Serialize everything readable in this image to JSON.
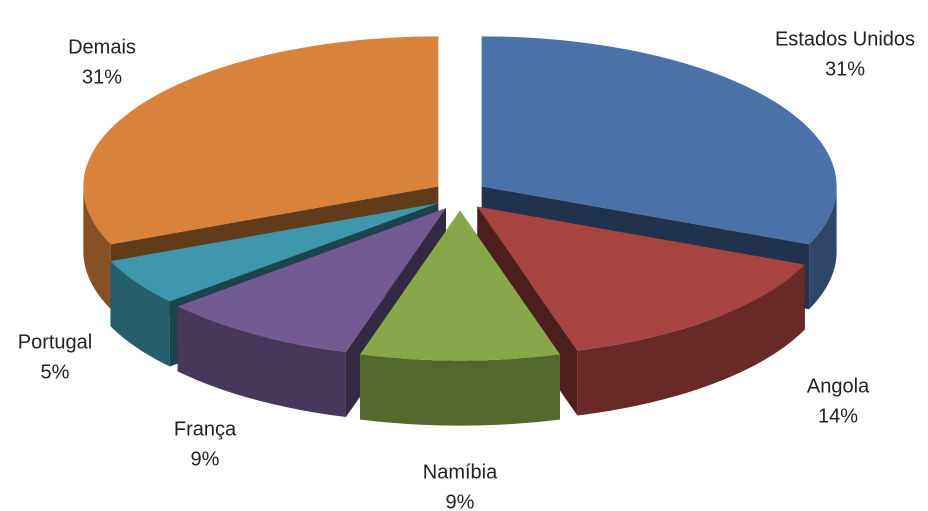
{
  "chart_data": {
    "type": "pie",
    "categories": [
      "Estados Unidos",
      "Angola",
      "Namíbia",
      "França",
      "Portugal",
      "Demais"
    ],
    "values": [
      31,
      14,
      9,
      9,
      5,
      31
    ],
    "value_labels": [
      "31%",
      "14%",
      "9%",
      "9%",
      "5%",
      "31%"
    ],
    "colors": [
      "#4a72a8",
      "#a84440",
      "#88a74a",
      "#735a93",
      "#3f97ae",
      "#d9823c"
    ]
  }
}
